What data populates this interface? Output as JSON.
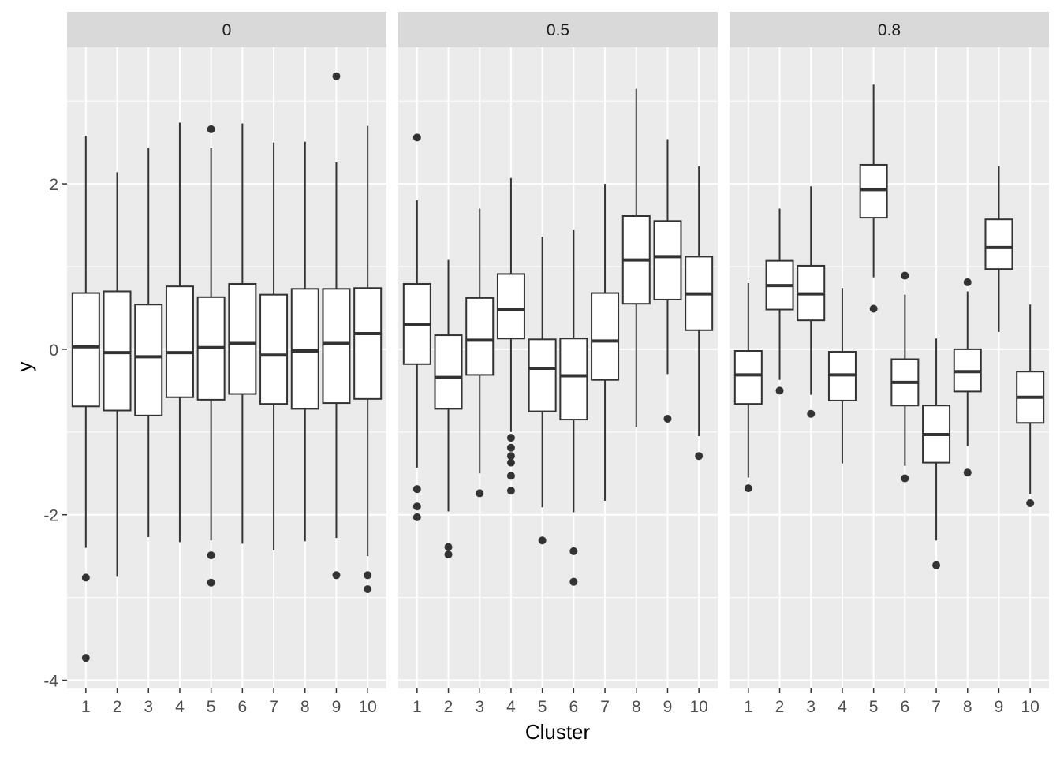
{
  "chart_data": {
    "type": "boxplot",
    "xlabel": "Cluster",
    "ylabel": "y",
    "ylim": [
      -4.1,
      3.65
    ],
    "y_ticks": [
      -4,
      -2,
      0,
      2
    ],
    "y_tick_labels": [
      "-4",
      "-2",
      "0",
      "2"
    ],
    "categories": [
      "1",
      "2",
      "3",
      "4",
      "5",
      "6",
      "7",
      "8",
      "9",
      "10"
    ],
    "grid": true,
    "legend": "none",
    "colors": {
      "panel_background": "#ebebeb",
      "strip_background": "#d9d9d9",
      "grid_line": "#ffffff",
      "box_fill": "#ffffff",
      "box_line": "#333333",
      "text": "#1a1a1a",
      "tick_text": "#4d4d4d"
    },
    "facets": [
      {
        "label": "0",
        "boxes": [
          {
            "cluster": "1",
            "whisker_low": -2.4,
            "q1": -0.69,
            "median": 0.03,
            "q3": 0.68,
            "whisker_high": 2.58,
            "outliers": [
              -2.76,
              -3.73
            ]
          },
          {
            "cluster": "2",
            "whisker_low": -2.75,
            "q1": -0.74,
            "median": -0.04,
            "q3": 0.7,
            "whisker_high": 2.14,
            "outliers": []
          },
          {
            "cluster": "3",
            "whisker_low": -2.27,
            "q1": -0.8,
            "median": -0.09,
            "q3": 0.54,
            "whisker_high": 2.43,
            "outliers": []
          },
          {
            "cluster": "4",
            "whisker_low": -2.33,
            "q1": -0.58,
            "median": -0.04,
            "q3": 0.76,
            "whisker_high": 2.74,
            "outliers": []
          },
          {
            "cluster": "5",
            "whisker_low": -2.31,
            "q1": -0.61,
            "median": 0.02,
            "q3": 0.63,
            "whisker_high": 2.43,
            "outliers": [
              2.66,
              -2.49,
              -2.82
            ]
          },
          {
            "cluster": "6",
            "whisker_low": -2.35,
            "q1": -0.54,
            "median": 0.07,
            "q3": 0.79,
            "whisker_high": 2.73,
            "outliers": []
          },
          {
            "cluster": "7",
            "whisker_low": -2.43,
            "q1": -0.66,
            "median": -0.07,
            "q3": 0.66,
            "whisker_high": 2.5,
            "outliers": []
          },
          {
            "cluster": "8",
            "whisker_low": -2.32,
            "q1": -0.72,
            "median": -0.02,
            "q3": 0.73,
            "whisker_high": 2.51,
            "outliers": []
          },
          {
            "cluster": "9",
            "whisker_low": -2.28,
            "q1": -0.65,
            "median": 0.07,
            "q3": 0.73,
            "whisker_high": 2.26,
            "outliers": [
              3.3,
              -2.73
            ]
          },
          {
            "cluster": "10",
            "whisker_low": -2.5,
            "q1": -0.6,
            "median": 0.19,
            "q3": 0.74,
            "whisker_high": 2.7,
            "outliers": [
              -2.73,
              -2.9
            ]
          }
        ]
      },
      {
        "label": "0.5",
        "boxes": [
          {
            "cluster": "1",
            "whisker_low": -1.43,
            "q1": -0.18,
            "median": 0.3,
            "q3": 0.79,
            "whisker_high": 1.8,
            "outliers": [
              2.56,
              -1.69,
              -1.9,
              -2.03
            ]
          },
          {
            "cluster": "2",
            "whisker_low": -1.96,
            "q1": -0.72,
            "median": -0.34,
            "q3": 0.17,
            "whisker_high": 1.08,
            "outliers": [
              -2.39,
              -2.48
            ]
          },
          {
            "cluster": "3",
            "whisker_low": -1.5,
            "q1": -0.31,
            "median": 0.11,
            "q3": 0.62,
            "whisker_high": 1.7,
            "outliers": [
              -1.74
            ]
          },
          {
            "cluster": "4",
            "whisker_low": -1.0,
            "q1": 0.13,
            "median": 0.48,
            "q3": 0.91,
            "whisker_high": 2.07,
            "outliers": [
              -1.07,
              -1.19,
              -1.29,
              -1.37,
              -1.53,
              -1.71
            ]
          },
          {
            "cluster": "5",
            "whisker_low": -1.91,
            "q1": -0.75,
            "median": -0.23,
            "q3": 0.12,
            "whisker_high": 1.36,
            "outliers": [
              -2.31
            ]
          },
          {
            "cluster": "6",
            "whisker_low": -1.97,
            "q1": -0.85,
            "median": -0.32,
            "q3": 0.13,
            "whisker_high": 1.44,
            "outliers": [
              -2.44,
              -2.81
            ]
          },
          {
            "cluster": "7",
            "whisker_low": -1.83,
            "q1": -0.37,
            "median": 0.1,
            "q3": 0.68,
            "whisker_high": 2.0,
            "outliers": []
          },
          {
            "cluster": "8",
            "whisker_low": -0.94,
            "q1": 0.55,
            "median": 1.08,
            "q3": 1.61,
            "whisker_high": 3.15,
            "outliers": []
          },
          {
            "cluster": "9",
            "whisker_low": -0.3,
            "q1": 0.6,
            "median": 1.12,
            "q3": 1.55,
            "whisker_high": 2.54,
            "outliers": [
              -0.84
            ]
          },
          {
            "cluster": "10",
            "whisker_low": -1.05,
            "q1": 0.23,
            "median": 0.67,
            "q3": 1.12,
            "whisker_high": 2.21,
            "outliers": [
              -1.29
            ]
          }
        ]
      },
      {
        "label": "0.8",
        "boxes": [
          {
            "cluster": "1",
            "whisker_low": -1.55,
            "q1": -0.66,
            "median": -0.31,
            "q3": -0.02,
            "whisker_high": 0.8,
            "outliers": [
              -1.68
            ]
          },
          {
            "cluster": "2",
            "whisker_low": -0.37,
            "q1": 0.48,
            "median": 0.77,
            "q3": 1.07,
            "whisker_high": 1.7,
            "outliers": [
              -0.5
            ]
          },
          {
            "cluster": "3",
            "whisker_low": -0.55,
            "q1": 0.35,
            "median": 0.67,
            "q3": 1.01,
            "whisker_high": 1.97,
            "outliers": [
              -0.78
            ]
          },
          {
            "cluster": "4",
            "whisker_low": -1.38,
            "q1": -0.62,
            "median": -0.31,
            "q3": -0.03,
            "whisker_high": 0.74,
            "outliers": []
          },
          {
            "cluster": "5",
            "whisker_low": 0.87,
            "q1": 1.59,
            "median": 1.93,
            "q3": 2.23,
            "whisker_high": 3.2,
            "outliers": [
              0.49
            ]
          },
          {
            "cluster": "6",
            "whisker_low": -1.41,
            "q1": -0.68,
            "median": -0.4,
            "q3": -0.12,
            "whisker_high": 0.66,
            "outliers": [
              0.89,
              -1.56
            ]
          },
          {
            "cluster": "7",
            "whisker_low": -2.31,
            "q1": -1.37,
            "median": -1.03,
            "q3": -0.68,
            "whisker_high": 0.13,
            "outliers": [
              -2.61
            ]
          },
          {
            "cluster": "8",
            "whisker_low": -1.17,
            "q1": -0.51,
            "median": -0.27,
            "q3": 0.0,
            "whisker_high": 0.7,
            "outliers": [
              0.81,
              -1.49
            ]
          },
          {
            "cluster": "9",
            "whisker_low": 0.21,
            "q1": 0.97,
            "median": 1.23,
            "q3": 1.57,
            "whisker_high": 2.21,
            "outliers": []
          },
          {
            "cluster": "10",
            "whisker_low": -1.75,
            "q1": -0.89,
            "median": -0.58,
            "q3": -0.27,
            "whisker_high": 0.54,
            "outliers": [
              -1.86
            ]
          }
        ]
      }
    ]
  }
}
